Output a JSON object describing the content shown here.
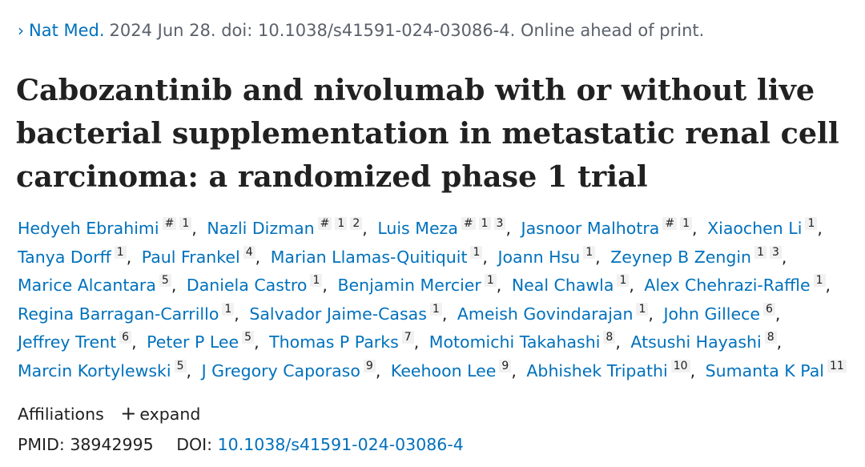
{
  "citation": {
    "chevron": "›",
    "journal": "Nat Med.",
    "details": "2024 Jun 28. doi: 10.1038/s41591-024-03086-4. Online ahead of print."
  },
  "title": "Cabozantinib and nivolumab with or without live bacterial supplementation in metastatic renal cell carcinoma: a randomized phase 1 trial",
  "authors": [
    {
      "name": "Hedyeh Ebrahimi",
      "sups": [
        "#",
        "1"
      ]
    },
    {
      "name": "Nazli Dizman",
      "sups": [
        "#",
        "1",
        "2"
      ]
    },
    {
      "name": "Luis Meza",
      "sups": [
        "#",
        "1",
        "3"
      ]
    },
    {
      "name": "Jasnoor Malhotra",
      "sups": [
        "#",
        "1"
      ]
    },
    {
      "name": "Xiaochen Li",
      "sups": [
        "1"
      ]
    },
    {
      "name": "Tanya Dorff",
      "sups": [
        "1"
      ]
    },
    {
      "name": "Paul Frankel",
      "sups": [
        "4"
      ]
    },
    {
      "name": "Marian Llamas-Quitiquit",
      "sups": [
        "1"
      ]
    },
    {
      "name": "Joann Hsu",
      "sups": [
        "1"
      ]
    },
    {
      "name": "Zeynep B Zengin",
      "sups": [
        "1",
        "3"
      ]
    },
    {
      "name": "Marice Alcantara",
      "sups": [
        "5"
      ]
    },
    {
      "name": "Daniela Castro",
      "sups": [
        "1"
      ]
    },
    {
      "name": "Benjamin Mercier",
      "sups": [
        "1"
      ]
    },
    {
      "name": "Neal Chawla",
      "sups": [
        "1"
      ]
    },
    {
      "name": "Alex Chehrazi-Raffle",
      "sups": [
        "1"
      ]
    },
    {
      "name": "Regina Barragan-Carrillo",
      "sups": [
        "1"
      ]
    },
    {
      "name": "Salvador Jaime-Casas",
      "sups": [
        "1"
      ]
    },
    {
      "name": "Ameish Govindarajan",
      "sups": [
        "1"
      ]
    },
    {
      "name": "John Gillece",
      "sups": [
        "6"
      ]
    },
    {
      "name": "Jeffrey Trent",
      "sups": [
        "6"
      ]
    },
    {
      "name": "Peter P Lee",
      "sups": [
        "5"
      ]
    },
    {
      "name": "Thomas P Parks",
      "sups": [
        "7"
      ]
    },
    {
      "name": "Motomichi Takahashi",
      "sups": [
        "8"
      ]
    },
    {
      "name": "Atsushi Hayashi",
      "sups": [
        "8"
      ]
    },
    {
      "name": "Marcin Kortylewski",
      "sups": [
        "5"
      ]
    },
    {
      "name": "J Gregory Caporaso",
      "sups": [
        "9"
      ]
    },
    {
      "name": "Keehoon Lee",
      "sups": [
        "9"
      ]
    },
    {
      "name": "Abhishek Tripathi",
      "sups": [
        "10"
      ]
    },
    {
      "name": "Sumanta K Pal",
      "sups": [
        "11"
      ]
    }
  ],
  "affiliations": {
    "label": "Affiliations",
    "plus": "+",
    "expand_label": "expand"
  },
  "identifiers": {
    "pmid_label": "PMID:",
    "pmid": "38942995",
    "doi_label": "DOI:",
    "doi": "10.1038/s41591-024-03086-4"
  }
}
